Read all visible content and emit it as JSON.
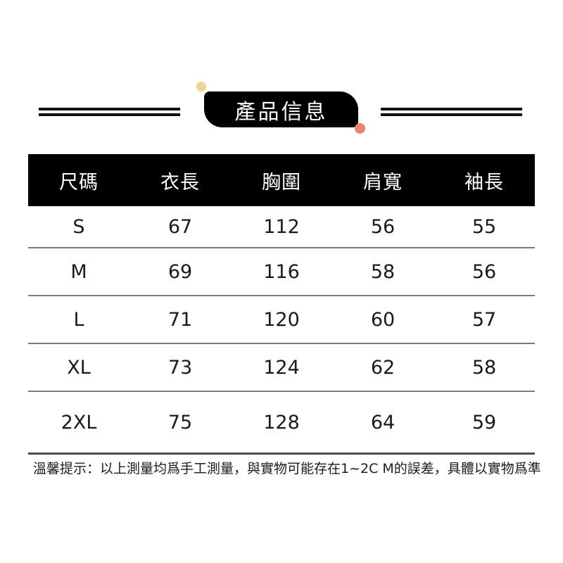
{
  "banner": {
    "title": "產品信息"
  },
  "table": {
    "headers": [
      "尺碼",
      "衣長",
      "胸圍",
      "肩寬",
      "袖長"
    ],
    "rows": [
      {
        "size": "S",
        "values": [
          "67",
          "112",
          "56",
          "55"
        ]
      },
      {
        "size": "M",
        "values": [
          "69",
          "116",
          "58",
          "56"
        ]
      },
      {
        "size": "L",
        "values": [
          "71",
          "120",
          "60",
          "57"
        ]
      },
      {
        "size": "XL",
        "values": [
          "73",
          "124",
          "62",
          "58"
        ]
      },
      {
        "size": "2XL",
        "values": [
          "75",
          "128",
          "64",
          "59"
        ]
      }
    ]
  },
  "note": "溫馨提示：以上測量均爲手工測量，與實物可能存在1~2C M的誤差，具體以實物爲準",
  "colors": {
    "banner_bg": "#000000",
    "header_bg": "#000000",
    "dot_yellow": "#F6D292",
    "dot_coral": "#EE8273",
    "divider": "#7B7B7B",
    "divider_strong": "#4C4C4C"
  }
}
